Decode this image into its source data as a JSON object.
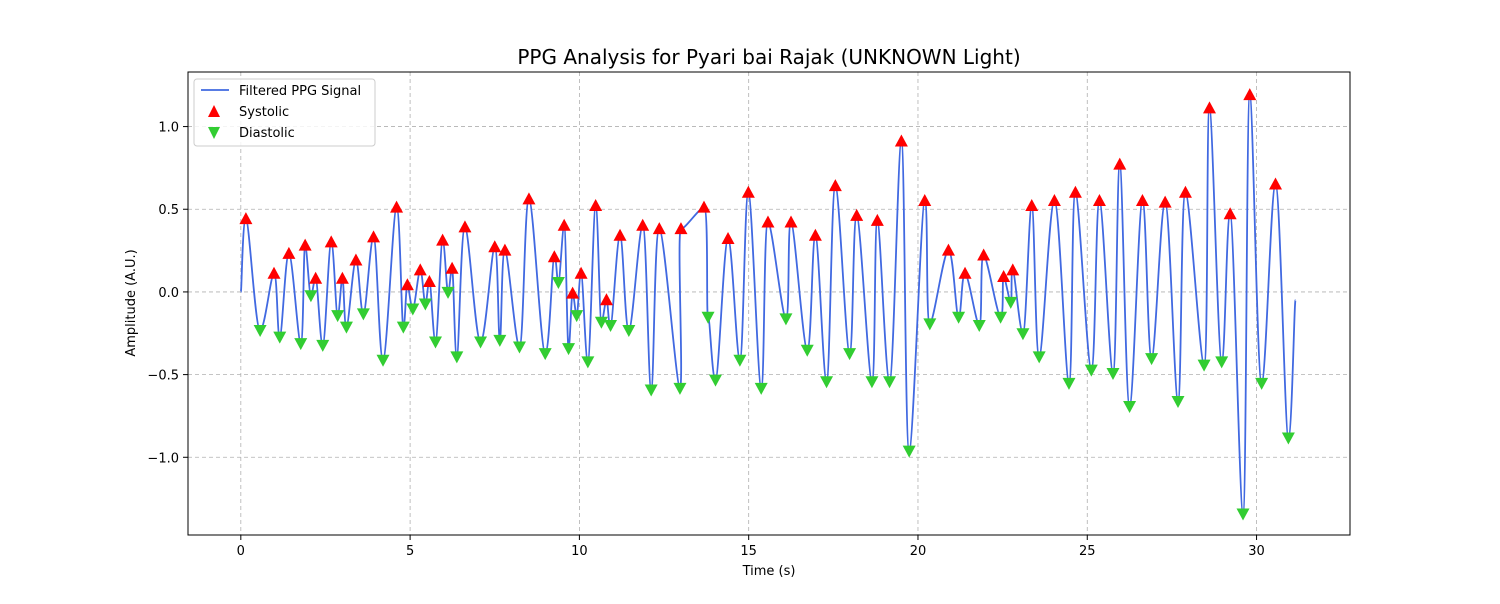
{
  "chart_data": {
    "type": "line",
    "title": "PPG Analysis for Pyari bai Rajak (UNKNOWN Light)",
    "xlabel": "Time (s)",
    "ylabel": "Amplitude (A.U.)",
    "xlim": [
      -1.56,
      32.76
    ],
    "ylim": [
      -1.47,
      1.33
    ],
    "x_ticks": [
      0,
      5,
      10,
      15,
      20,
      25,
      30
    ],
    "x_tick_labels": [
      "0",
      "5",
      "10",
      "15",
      "20",
      "25",
      "30"
    ],
    "y_ticks": [
      -1.0,
      -0.5,
      0.0,
      0.5,
      1.0
    ],
    "y_tick_labels": [
      "−1.0",
      "−0.5",
      "0.0",
      "0.5",
      "1.0"
    ],
    "grid": true,
    "legend": {
      "placement": "top-left",
      "entries": [
        {
          "label": "Filtered PPG Signal",
          "kind": "line",
          "color": "#4169e1"
        },
        {
          "label": "Systolic",
          "kind": "marker-up",
          "color": "#ff0000"
        },
        {
          "label": "Diastolic",
          "kind": "marker-down",
          "color": "#32cd32"
        }
      ]
    },
    "series": [
      {
        "name": "Systolic",
        "marker": "triangle-up",
        "color": "#ff0000",
        "points": [
          [
            0.15,
            0.44
          ],
          [
            0.98,
            0.11
          ],
          [
            1.42,
            0.23
          ],
          [
            1.9,
            0.28
          ],
          [
            2.21,
            0.08
          ],
          [
            2.67,
            0.3
          ],
          [
            3.0,
            0.08
          ],
          [
            3.4,
            0.19
          ],
          [
            3.92,
            0.33
          ],
          [
            4.6,
            0.51
          ],
          [
            4.92,
            0.04
          ],
          [
            5.3,
            0.13
          ],
          [
            5.57,
            0.06
          ],
          [
            5.96,
            0.31
          ],
          [
            6.24,
            0.14
          ],
          [
            6.62,
            0.39
          ],
          [
            7.5,
            0.27
          ],
          [
            7.8,
            0.25
          ],
          [
            8.51,
            0.56
          ],
          [
            9.26,
            0.21
          ],
          [
            9.55,
            0.4
          ],
          [
            9.8,
            -0.01
          ],
          [
            10.05,
            0.11
          ],
          [
            10.48,
            0.52
          ],
          [
            10.8,
            -0.05
          ],
          [
            11.2,
            0.34
          ],
          [
            11.87,
            0.4
          ],
          [
            12.36,
            0.38
          ],
          [
            13.0,
            0.38
          ],
          [
            13.68,
            0.51
          ],
          [
            14.39,
            0.32
          ],
          [
            14.99,
            0.6
          ],
          [
            15.57,
            0.42
          ],
          [
            16.25,
            0.42
          ],
          [
            16.97,
            0.34
          ],
          [
            17.56,
            0.64
          ],
          [
            18.19,
            0.46
          ],
          [
            18.8,
            0.43
          ],
          [
            19.51,
            0.91
          ],
          [
            20.2,
            0.55
          ],
          [
            20.9,
            0.25
          ],
          [
            21.39,
            0.11
          ],
          [
            21.94,
            0.22
          ],
          [
            22.53,
            0.09
          ],
          [
            22.8,
            0.13
          ],
          [
            23.36,
            0.52
          ],
          [
            24.03,
            0.55
          ],
          [
            24.65,
            0.6
          ],
          [
            25.36,
            0.55
          ],
          [
            25.96,
            0.77
          ],
          [
            26.63,
            0.55
          ],
          [
            27.3,
            0.54
          ],
          [
            27.9,
            0.6
          ],
          [
            28.61,
            1.11
          ],
          [
            29.22,
            0.47
          ],
          [
            29.8,
            1.19
          ],
          [
            30.56,
            0.65
          ]
        ]
      },
      {
        "name": "Diastolic",
        "marker": "triangle-down",
        "color": "#32cd32",
        "points": [
          [
            0.57,
            -0.23
          ],
          [
            1.15,
            -0.27
          ],
          [
            1.77,
            -0.31
          ],
          [
            2.07,
            -0.02
          ],
          [
            2.42,
            -0.32
          ],
          [
            2.86,
            -0.14
          ],
          [
            3.12,
            -0.21
          ],
          [
            3.62,
            -0.13
          ],
          [
            4.2,
            -0.41
          ],
          [
            4.8,
            -0.21
          ],
          [
            5.08,
            -0.1
          ],
          [
            5.45,
            -0.07
          ],
          [
            5.75,
            -0.3
          ],
          [
            6.12,
            0.0
          ],
          [
            6.38,
            -0.39
          ],
          [
            7.08,
            -0.3
          ],
          [
            7.65,
            -0.29
          ],
          [
            8.23,
            -0.33
          ],
          [
            8.99,
            -0.37
          ],
          [
            9.38,
            0.06
          ],
          [
            9.68,
            -0.34
          ],
          [
            9.92,
            -0.14
          ],
          [
            10.25,
            -0.42
          ],
          [
            10.65,
            -0.18
          ],
          [
            10.92,
            -0.2
          ],
          [
            11.46,
            -0.23
          ],
          [
            12.12,
            -0.59
          ],
          [
            12.97,
            -0.58
          ],
          [
            13.8,
            -0.15
          ],
          [
            14.02,
            -0.53
          ],
          [
            14.74,
            -0.41
          ],
          [
            15.37,
            -0.58
          ],
          [
            16.1,
            -0.16
          ],
          [
            16.73,
            -0.35
          ],
          [
            17.3,
            -0.54
          ],
          [
            17.98,
            -0.37
          ],
          [
            18.64,
            -0.54
          ],
          [
            19.16,
            -0.54
          ],
          [
            19.74,
            -0.96
          ],
          [
            20.35,
            -0.19
          ],
          [
            21.2,
            -0.15
          ],
          [
            21.81,
            -0.2
          ],
          [
            22.44,
            -0.15
          ],
          [
            22.74,
            -0.06
          ],
          [
            23.1,
            -0.25
          ],
          [
            23.58,
            -0.39
          ],
          [
            24.46,
            -0.55
          ],
          [
            25.12,
            -0.47
          ],
          [
            25.76,
            -0.49
          ],
          [
            26.25,
            -0.69
          ],
          [
            26.9,
            -0.4
          ],
          [
            27.68,
            -0.66
          ],
          [
            28.45,
            -0.44
          ],
          [
            28.97,
            -0.42
          ],
          [
            29.6,
            -1.34
          ],
          [
            30.15,
            -0.55
          ],
          [
            30.94,
            -0.88
          ]
        ]
      }
    ]
  }
}
